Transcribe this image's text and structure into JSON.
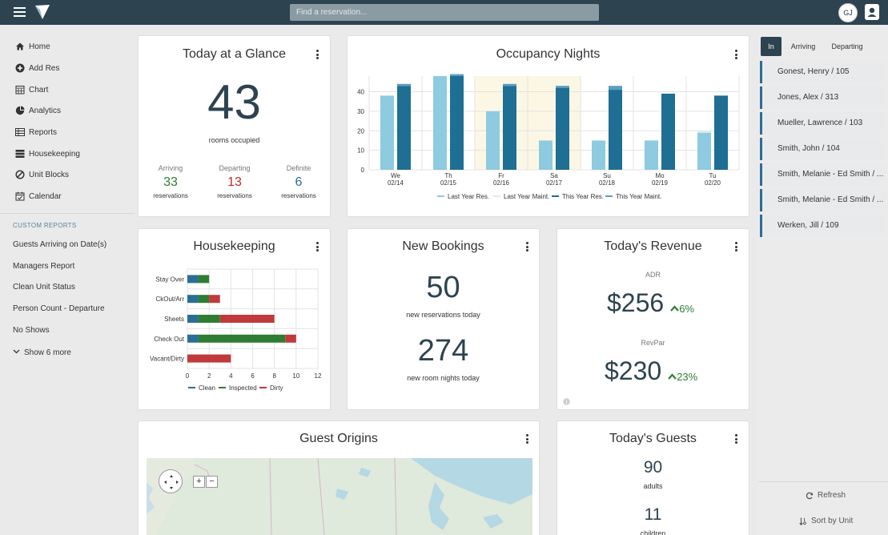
{
  "search": {
    "placeholder": "Find a reservation..."
  },
  "user": {
    "initials": "GJ"
  },
  "sidebar": {
    "items": [
      {
        "label": "Home",
        "icon": "home-icon"
      },
      {
        "label": "Add Res",
        "icon": "plus-circle-icon"
      },
      {
        "label": "Chart",
        "icon": "calendar-grid-icon"
      },
      {
        "label": "Analytics",
        "icon": "pie-chart-icon"
      },
      {
        "label": "Reports",
        "icon": "table-icon"
      },
      {
        "label": "Housekeeping",
        "icon": "server-icon"
      },
      {
        "label": "Unit Blocks",
        "icon": "ban-icon"
      },
      {
        "label": "Calendar",
        "icon": "calendar-icon"
      }
    ],
    "section_title": "CUSTOM REPORTS",
    "reports": [
      "Guests Arriving on Date(s)",
      "Managers Report",
      "Clean Unit Status",
      "Person Count - Departure",
      "No Shows"
    ],
    "show_more": "Show 6 more"
  },
  "glance": {
    "title": "Today at a Glance",
    "rooms": "43",
    "rooms_label": "rooms occupied",
    "stats": [
      {
        "label": "Arriving",
        "value": "33",
        "sub": "reservations",
        "color": "#2e7d32"
      },
      {
        "label": "Departing",
        "value": "13",
        "sub": "reservations",
        "color": "#c62828"
      },
      {
        "label": "Definite",
        "value": "6",
        "sub": "reservations",
        "color": "#2a6e96"
      }
    ]
  },
  "occupancy": {
    "title": "Occupancy Nights"
  },
  "housekeeping": {
    "title": "Housekeeping"
  },
  "bookings": {
    "title": "New Bookings",
    "reservations": "50",
    "reservations_label": "new reservations today",
    "nights": "274",
    "nights_label": "new room nights today"
  },
  "revenue": {
    "title": "Today's Revenue",
    "adr_label": "ADR",
    "adr": "$256",
    "adr_change": "6%",
    "revpar_label": "RevPar",
    "revpar": "$230",
    "revpar_change": "23%",
    "up_color": "#2e7d32"
  },
  "origins": {
    "title": "Guest Origins"
  },
  "guests": {
    "title": "Today's Guests",
    "adults": "90",
    "adults_label": "adults",
    "children": "11",
    "children_label": "children"
  },
  "right_panel": {
    "tabs": [
      "In",
      "Arriving",
      "Departing"
    ],
    "list": [
      "Gonest, Henry / 105",
      "Jones, Alex / 313",
      "Mueller, Lawrence / 103",
      "Smith, John / 104",
      "Smith, Melanie - Ed Smith / ...",
      "Smith, Melanie - Ed Smith / ...",
      "Werken, Jill / 109"
    ],
    "refresh": "Refresh",
    "sort": "Sort by Unit"
  },
  "chart_data": [
    {
      "type": "bar",
      "title": "",
      "categories": [
        "We 02/14",
        "Th 02/15",
        "Fr 02/16",
        "Sa 02/17",
        "Su 02/18",
        "Mo 02/19",
        "Tu 02/20"
      ],
      "day_labels": [
        "We",
        "Th",
        "Fr",
        "Sa",
        "Su",
        "Mo",
        "Tu"
      ],
      "date_labels": [
        "02/14",
        "02/15",
        "02/16",
        "02/17",
        "02/18",
        "02/19",
        "02/20"
      ],
      "series": [
        {
          "name": "Last Year Res.",
          "values": [
            38,
            48,
            30,
            15,
            15,
            15,
            19
          ],
          "color": "#8ecae0"
        },
        {
          "name": "Last Year Maint.",
          "values": [
            0,
            0,
            0,
            0,
            0,
            0,
            1
          ],
          "color": "#d6eef6"
        },
        {
          "name": "This Year Res.",
          "values": [
            43,
            48,
            43,
            42,
            41,
            39,
            38
          ],
          "color": "#1f6e94"
        },
        {
          "name": "This Year Maint.",
          "values": [
            1,
            1,
            1,
            1,
            2,
            0,
            0
          ],
          "color": "#5a9ec2"
        }
      ],
      "yticks": [
        0,
        10,
        20,
        30,
        40
      ],
      "ylim": [
        0,
        48
      ],
      "weekend_highlight": [
        "Fr 02/16",
        "Sa 02/17"
      ],
      "grid": true,
      "legend": "bottom"
    },
    {
      "type": "bar",
      "orientation": "horizontal",
      "stacked": true,
      "title": "",
      "categories": [
        "Stay Over",
        "CkOut/Arr",
        "Sheets",
        "Check Out",
        "Vacant/Dirty"
      ],
      "series": [
        {
          "name": "Clean",
          "values": [
            1,
            1,
            1,
            1,
            0
          ],
          "color": "#2a6e96"
        },
        {
          "name": "Inspected",
          "values": [
            1,
            1,
            2,
            8,
            0
          ],
          "color": "#2e7d32"
        },
        {
          "name": "Dirty",
          "values": [
            0,
            1,
            5,
            1,
            4
          ],
          "color": "#c0393b"
        }
      ],
      "xticks": [
        0,
        2,
        4,
        6,
        8,
        10,
        12
      ],
      "xlim": [
        0,
        12
      ],
      "grid": true,
      "legend": "bottom"
    }
  ]
}
